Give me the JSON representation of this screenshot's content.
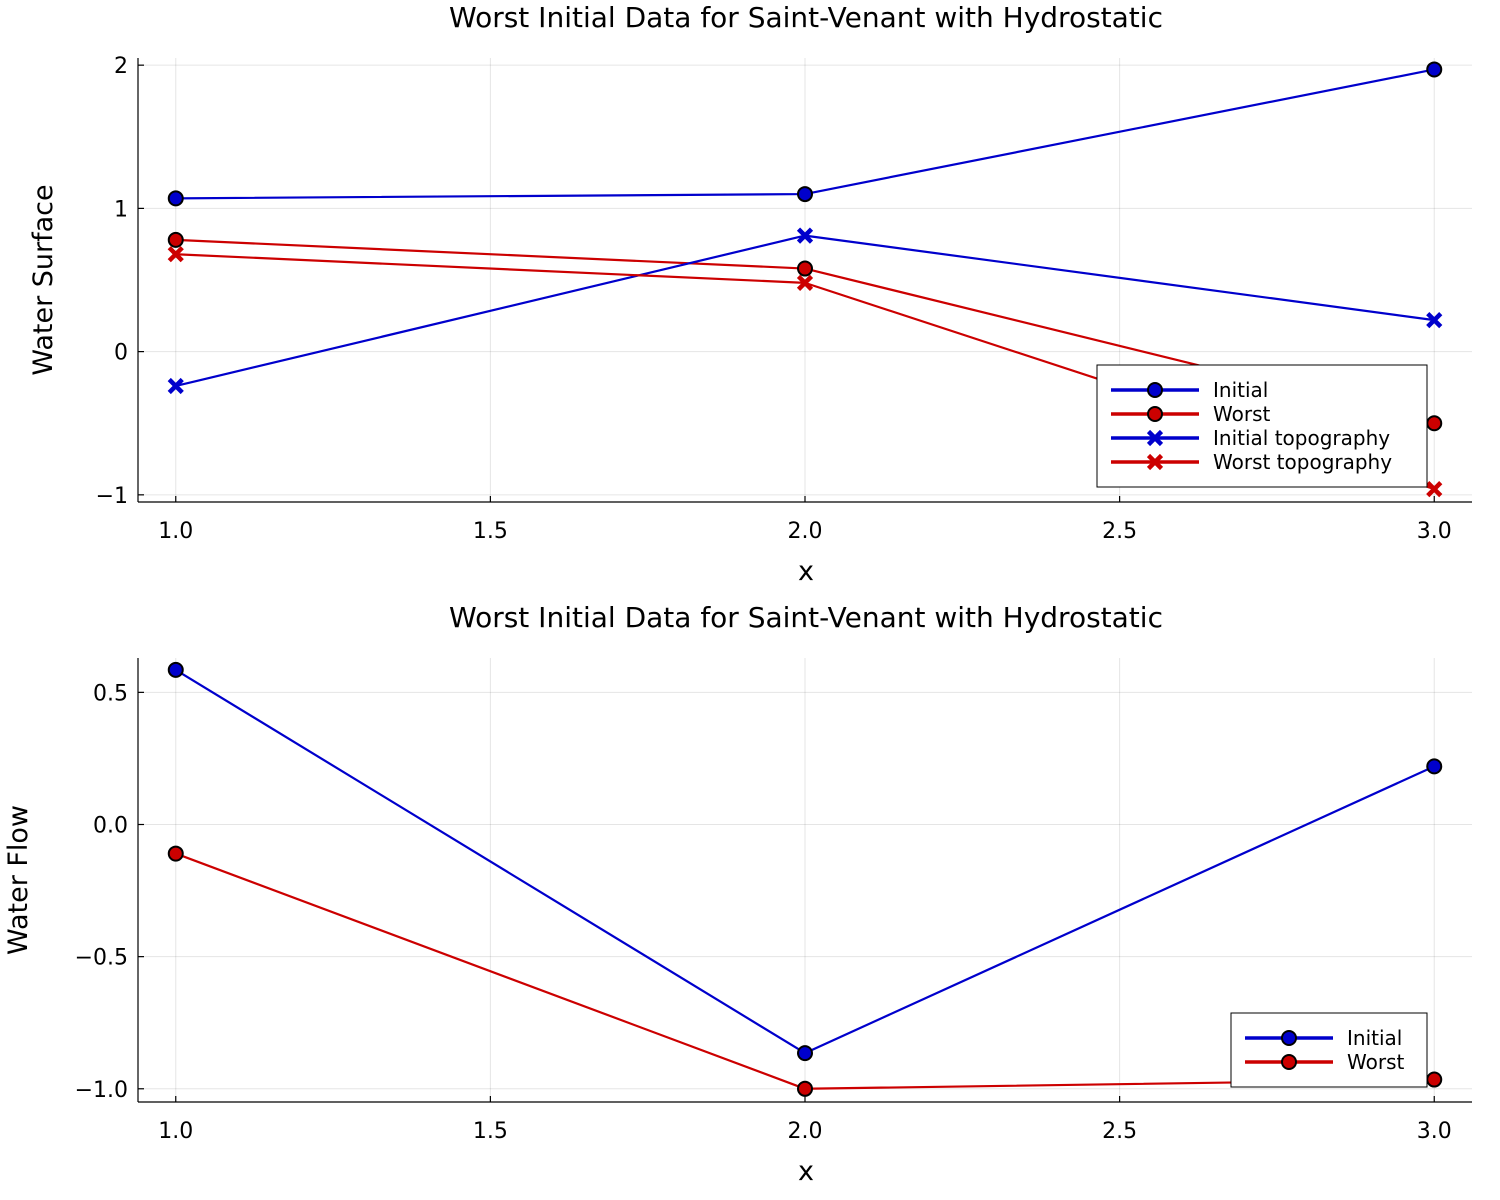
{
  "colors": {
    "blue": "#0000cc",
    "red": "#cc0000"
  },
  "chart_data": [
    {
      "type": "line",
      "title": "Worst Initial Data for Saint-Venant with Hydrostatic",
      "xlabel": "x",
      "ylabel": "Water Surface",
      "x": [
        1.0,
        2.0,
        3.0
      ],
      "xlim": [
        0.94,
        3.06
      ],
      "ylim": [
        -1.05,
        2.05
      ],
      "xticks": [
        1.0,
        1.5,
        2.0,
        2.5,
        3.0
      ],
      "xtick_labels": [
        "1.0",
        "1.5",
        "2.0",
        "2.5",
        "3.0"
      ],
      "yticks": [
        -1,
        0,
        1,
        2
      ],
      "ytick_labels": [
        "−1",
        "0",
        "1",
        "2"
      ],
      "grid": true,
      "legend_position": "bottom-right",
      "series": [
        {
          "name": "Initial",
          "marker": "circle",
          "color": "#0000cc",
          "values": [
            1.07,
            1.1,
            1.97
          ]
        },
        {
          "name": "Worst",
          "marker": "circle",
          "color": "#cc0000",
          "values": [
            0.78,
            0.58,
            -0.5
          ]
        },
        {
          "name": "Initial topography",
          "marker": "x",
          "color": "#0000cc",
          "values": [
            -0.24,
            0.81,
            0.22
          ]
        },
        {
          "name": "Worst topography",
          "marker": "x",
          "color": "#cc0000",
          "values": [
            0.68,
            0.48,
            -0.96
          ]
        }
      ]
    },
    {
      "type": "line",
      "title": "Worst Initial Data for Saint-Venant with Hydrostatic",
      "xlabel": "x",
      "ylabel": "Water Flow",
      "x": [
        1.0,
        2.0,
        3.0
      ],
      "xlim": [
        0.94,
        3.06
      ],
      "ylim": [
        -1.05,
        0.63
      ],
      "xticks": [
        1.0,
        1.5,
        2.0,
        2.5,
        3.0
      ],
      "xtick_labels": [
        "1.0",
        "1.5",
        "2.0",
        "2.5",
        "3.0"
      ],
      "yticks": [
        -1.0,
        -0.5,
        0.0,
        0.5
      ],
      "ytick_labels": [
        "−1.0",
        "−0.5",
        "0.0",
        "0.5"
      ],
      "grid": true,
      "legend_position": "bottom-right",
      "series": [
        {
          "name": "Initial",
          "marker": "circle",
          "color": "#0000cc",
          "values": [
            0.585,
            -0.865,
            0.22
          ]
        },
        {
          "name": "Worst",
          "marker": "circle",
          "color": "#cc0000",
          "values": [
            -0.11,
            -1.0,
            -0.965
          ]
        }
      ]
    }
  ]
}
